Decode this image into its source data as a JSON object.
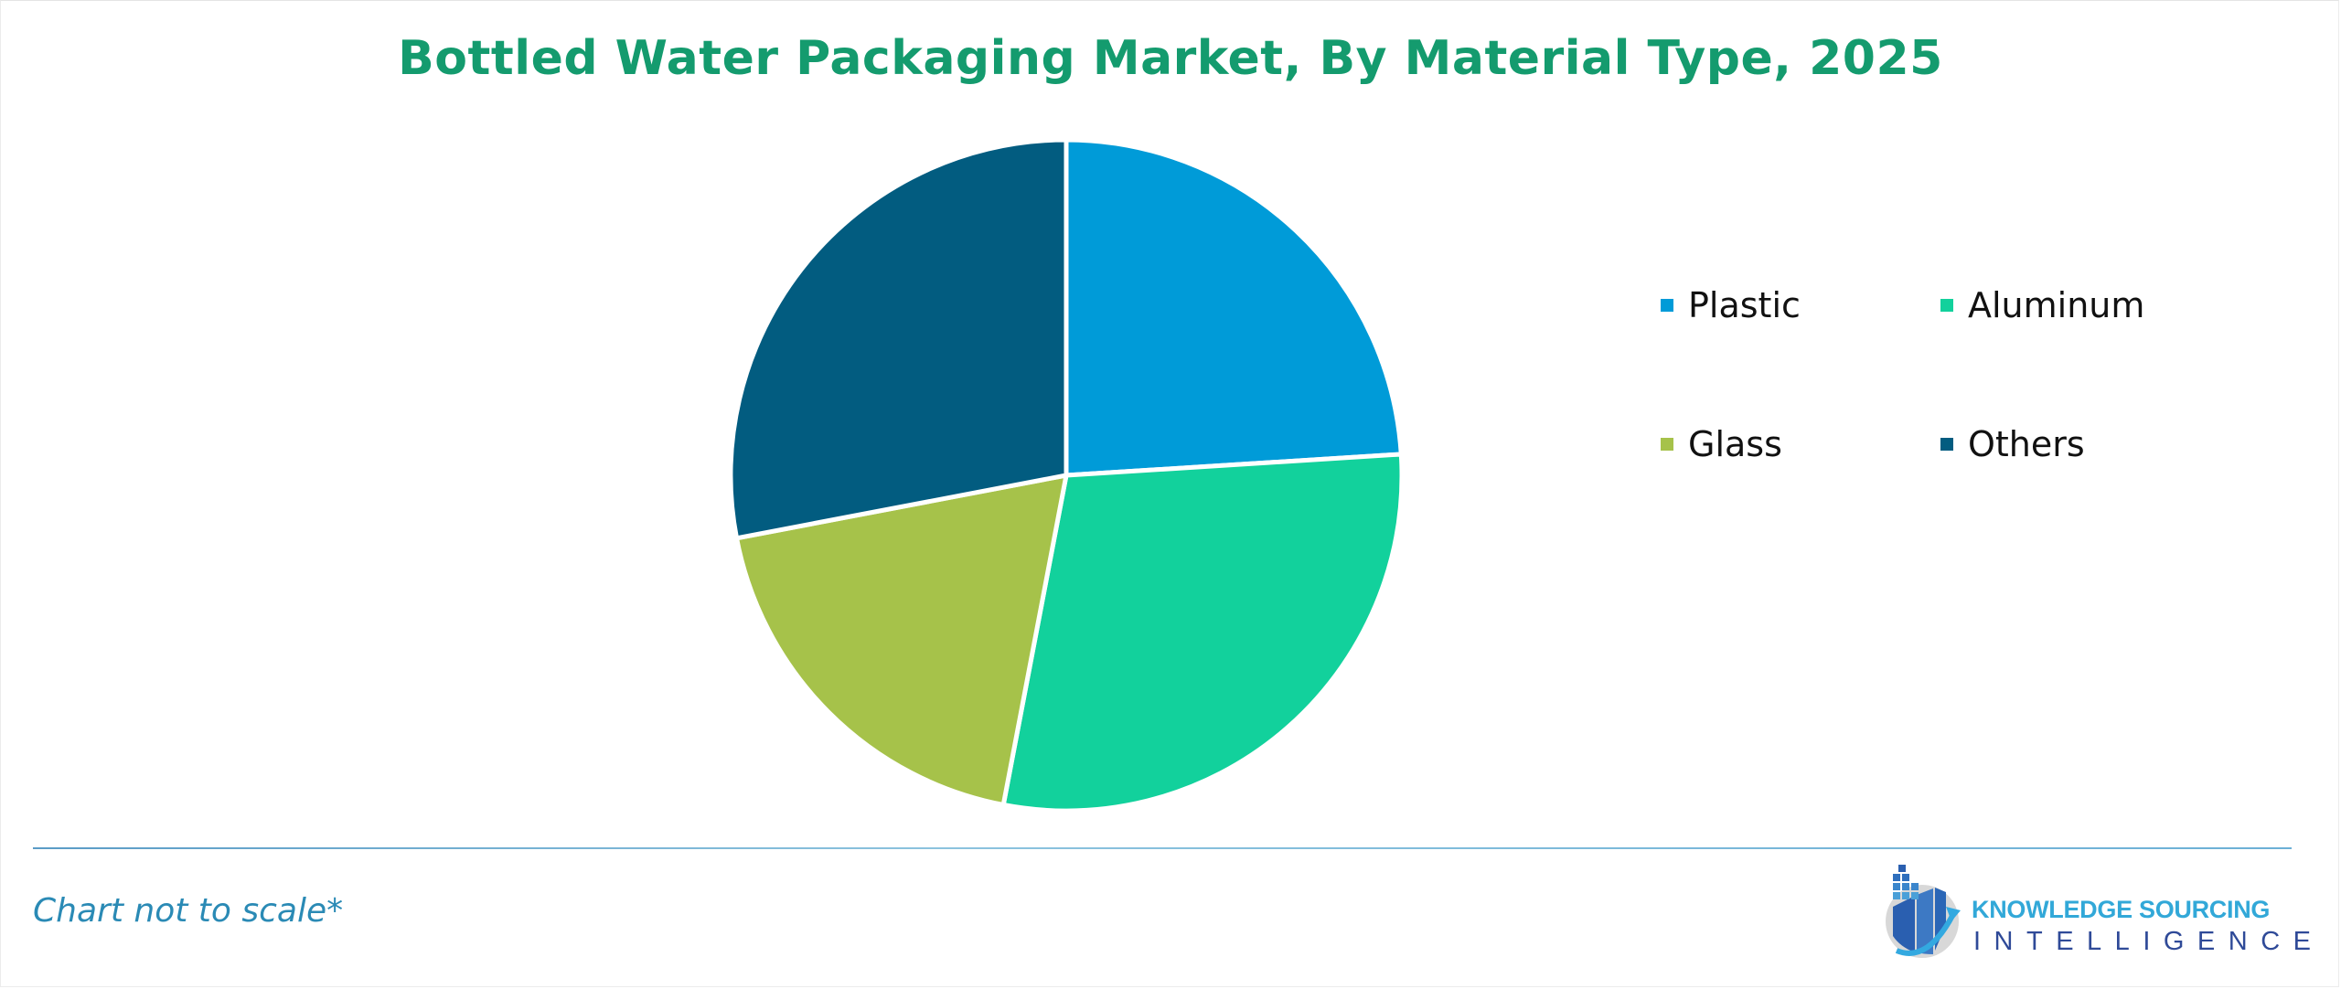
{
  "title": "Bottled Water Packaging Market, By Material Type, 2025",
  "footnote": "Chart not to scale*",
  "logo": {
    "line1": "KNOWLEDGE SOURCING",
    "line2": "INTELLIGENCE"
  },
  "legend": [
    {
      "label": "Plastic",
      "color": "#009bd8"
    },
    {
      "label": "Aluminum",
      "color": "#12d19c"
    },
    {
      "label": "Glass",
      "color": "#a6c24a"
    },
    {
      "label": "Others",
      "color": "#025c80"
    }
  ],
  "colors": {
    "title": "#149b6e",
    "footnote": "#2a8ab5",
    "divider": "#6cb0d6"
  },
  "chart_data": {
    "type": "pie",
    "title": "Bottled Water Packaging Market, By Material Type, 2025",
    "categories": [
      "Plastic",
      "Aluminum",
      "Glass",
      "Others"
    ],
    "values": [
      24,
      29,
      19,
      28
    ],
    "unit": "% (estimated share, chart not to scale)",
    "colors": [
      "#009bd8",
      "#12d19c",
      "#a6c24a",
      "#025c80"
    ],
    "start_angle_deg": 0,
    "direction": "clockwise",
    "legend_position": "right",
    "annotations": [
      "Chart not to scale*"
    ]
  }
}
